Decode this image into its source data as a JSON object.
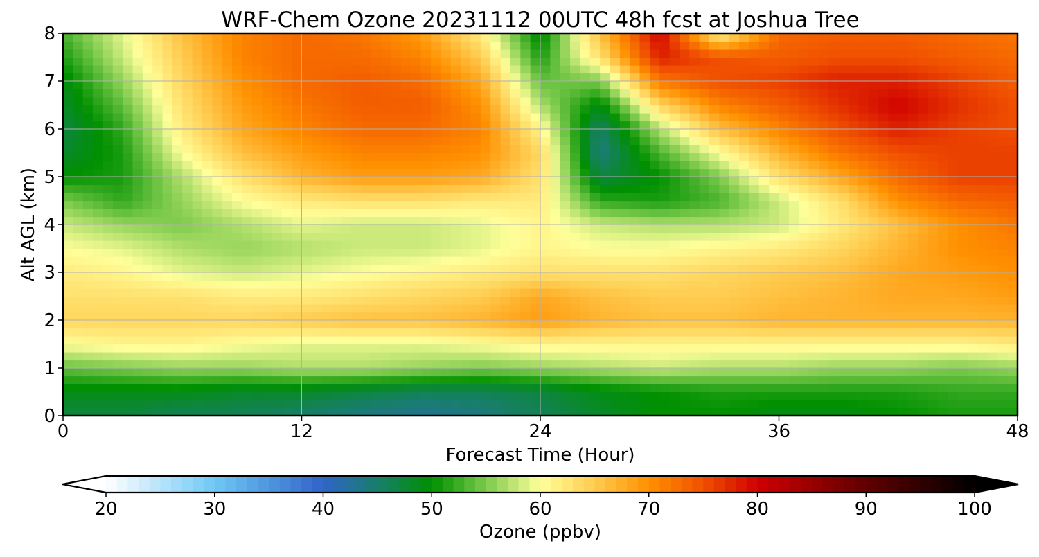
{
  "chart_data": {
    "type": "heatmap",
    "title": "WRF-Chem Ozone  20231112 00UTC 48h fcst at Joshua Tree",
    "xlabel": "Forecast Time (Hour)",
    "ylabel": "Alt AGL (km)",
    "xlim": [
      0,
      48
    ],
    "ylim": [
      0,
      8
    ],
    "xticks": [
      0,
      12,
      24,
      36,
      48
    ],
    "yticks": [
      0,
      1,
      2,
      3,
      4,
      5,
      6,
      7,
      8
    ],
    "grid": true,
    "x": [
      0,
      3,
      6,
      9,
      12,
      15,
      18,
      21,
      24,
      27,
      30,
      33,
      36,
      39,
      42,
      45,
      48
    ],
    "y": [
      0,
      0.5,
      1,
      1.5,
      2,
      2.5,
      3,
      3.5,
      4,
      4.5,
      5,
      5.5,
      6,
      6.5,
      7,
      7.5,
      8
    ],
    "z": [
      [
        47,
        47,
        46,
        46,
        45,
        44,
        43,
        44,
        46,
        48,
        50,
        50,
        49,
        49,
        50,
        51,
        51
      ],
      [
        49,
        49,
        49,
        48,
        48,
        47,
        46,
        46,
        47,
        49,
        50,
        51,
        51,
        51,
        51,
        52,
        52
      ],
      [
        54,
        55,
        56,
        56,
        57,
        57,
        56,
        55,
        56,
        57,
        58,
        57,
        57,
        56,
        56,
        55,
        56
      ],
      [
        60,
        61,
        61,
        60,
        59,
        59,
        59,
        60,
        61,
        61,
        61,
        61,
        61,
        61,
        61,
        61,
        62
      ],
      [
        64,
        64,
        64,
        64,
        65,
        66,
        66,
        67,
        69,
        67,
        66,
        66,
        67,
        67,
        67,
        67,
        67
      ],
      [
        63,
        63,
        63,
        62,
        62,
        63,
        64,
        65,
        68,
        66,
        65,
        65,
        66,
        67,
        68,
        68,
        69
      ],
      [
        62,
        61,
        59,
        58,
        59,
        60,
        61,
        62,
        63,
        63,
        63,
        64,
        65,
        66,
        68,
        69,
        70
      ],
      [
        60,
        59,
        57,
        56,
        57,
        58,
        58,
        59,
        61,
        60,
        60,
        61,
        62,
        64,
        67,
        70,
        71
      ],
      [
        58,
        56,
        55,
        57,
        59,
        58,
        58,
        59,
        61,
        58,
        57,
        57,
        58,
        62,
        66,
        70,
        72
      ],
      [
        55,
        52,
        56,
        60,
        62,
        63,
        63,
        62,
        62,
        52,
        51,
        53,
        58,
        63,
        70,
        73,
        74
      ],
      [
        50,
        51,
        57,
        63,
        67,
        69,
        69,
        68,
        63,
        47,
        50,
        55,
        63,
        68,
        73,
        76,
        76
      ],
      [
        48,
        51,
        60,
        66,
        69,
        71,
        71,
        70,
        64,
        44,
        53,
        60,
        67,
        72,
        75,
        76,
        76
      ],
      [
        47,
        52,
        62,
        68,
        71,
        73,
        73,
        71,
        61,
        45,
        57,
        66,
        71,
        75,
        78,
        76,
        75
      ],
      [
        48,
        54,
        63,
        69,
        72,
        74,
        74,
        70,
        57,
        49,
        64,
        71,
        74,
        77,
        80,
        77,
        75
      ],
      [
        49,
        56,
        64,
        70,
        73,
        74,
        73,
        68,
        54,
        55,
        72,
        75,
        76,
        78,
        78,
        76,
        74
      ],
      [
        51,
        58,
        65,
        71,
        73,
        73,
        71,
        65,
        51,
        63,
        78,
        75,
        74,
        75,
        75,
        74,
        73
      ],
      [
        53,
        59,
        66,
        71,
        73,
        72,
        69,
        62,
        49,
        66,
        80,
        61,
        73,
        74,
        74,
        73,
        72
      ]
    ],
    "colorbar": {
      "label": "Ozone  (ppbv)",
      "min": 20,
      "max": 100,
      "ticks": [
        20,
        30,
        40,
        50,
        60,
        70,
        80,
        90,
        100
      ],
      "extend": "both",
      "orientation": "horizontal",
      "stops": [
        {
          "v": 20,
          "c": "#ffffff"
        },
        {
          "v": 30,
          "c": "#6ec8f5"
        },
        {
          "v": 40,
          "c": "#3064c8"
        },
        {
          "v": 45,
          "c": "#187e6c"
        },
        {
          "v": 50,
          "c": "#009000"
        },
        {
          "v": 55,
          "c": "#7cca4c"
        },
        {
          "v": 60,
          "c": "#ffff9a"
        },
        {
          "v": 65,
          "c": "#ffcc50"
        },
        {
          "v": 70,
          "c": "#ff9000"
        },
        {
          "v": 75,
          "c": "#f05000"
        },
        {
          "v": 80,
          "c": "#d00000"
        },
        {
          "v": 90,
          "c": "#600000"
        },
        {
          "v": 100,
          "c": "#000000"
        }
      ]
    }
  }
}
